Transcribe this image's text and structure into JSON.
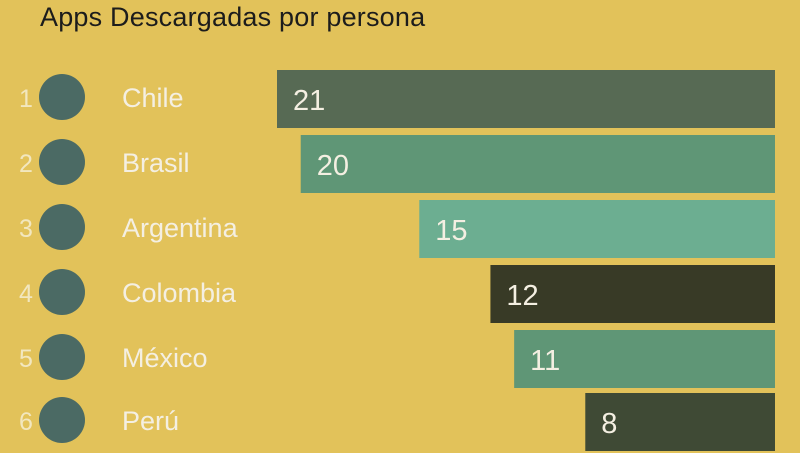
{
  "chart_data": {
    "type": "bar",
    "title": "Apps Descargadas por persona",
    "xlabel": "",
    "ylabel": "",
    "ranks": [
      "1",
      "2",
      "3",
      "4",
      "5",
      "6"
    ],
    "categories": [
      "Chile",
      "Brasil",
      "Argentina",
      "Colombia",
      "México",
      "Perú"
    ],
    "values": [
      21,
      20,
      15,
      12,
      11,
      8
    ],
    "value_labels": [
      "21",
      "20",
      "15",
      "12",
      "11",
      "8"
    ],
    "bar_colors": [
      "#576a54",
      "#5f9676",
      "#6cae91",
      "#383a26",
      "#5f9676",
      "#3f4a35"
    ],
    "marker_color": "#4b6a64",
    "background": "#e2c25a",
    "orientation": "horizontal",
    "alignment": "right",
    "grid": false,
    "legend": "none"
  }
}
